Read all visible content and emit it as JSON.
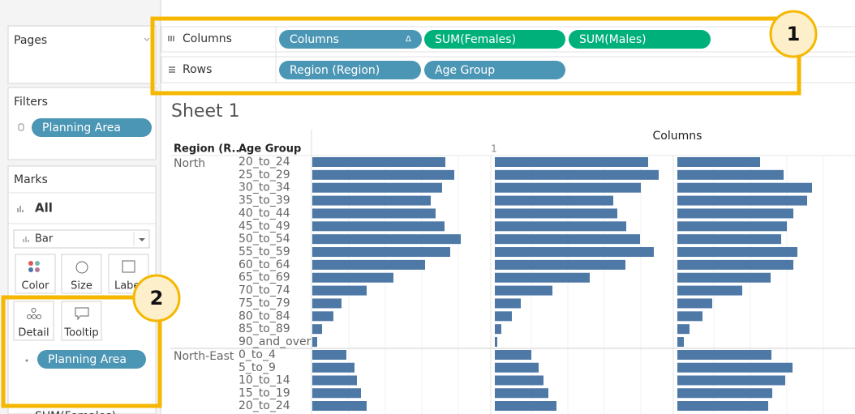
{
  "pages": {
    "title": "Pages"
  },
  "shelves": {
    "columns": {
      "label": "Columns",
      "pills": [
        "Columns",
        "SUM(Females)",
        "SUM(Males)"
      ],
      "sort_icon": "Δ"
    },
    "rows": {
      "label": "Rows",
      "pills": [
        "Region (Region)",
        "Age Group"
      ]
    }
  },
  "filters": {
    "title": "Filters",
    "pills": [
      "Planning Area"
    ]
  },
  "marks": {
    "title": "Marks",
    "all": "All",
    "mark_type": "Bar",
    "cards": [
      "Color",
      "Size",
      "Label",
      "Detail",
      "Tooltip"
    ],
    "detail_pill": "Planning Area",
    "next_item": "SUM(Females)"
  },
  "callouts": [
    "1",
    "2"
  ],
  "sheet": {
    "title": "Sheet 1",
    "column_header": "Columns",
    "column_value": "1",
    "row_headers": [
      "Region (R..",
      "Age Group"
    ],
    "regions": [
      {
        "name": "North",
        "age_groups": [
          "20_to_24",
          "25_to_29",
          "30_to_34",
          "35_to_39",
          "40_to_44",
          "45_to_49",
          "50_to_54",
          "55_to_59",
          "60_to_64",
          "65_to_69",
          "70_to_74",
          "75_to_79",
          "80_to_84",
          "85_to_89",
          "90_and_over"
        ],
        "values": [
          [
            164,
            175,
            160,
            146,
            152,
            163,
            183,
            170,
            139,
            100,
            67,
            36,
            26,
            12,
            6
          ],
          [
            189,
            202,
            180,
            146,
            151,
            162,
            179,
            196,
            161,
            117,
            71,
            32,
            21,
            8,
            3
          ],
          [
            102,
            131,
            166,
            160,
            143,
            135,
            128,
            148,
            143,
            115,
            80,
            43,
            31,
            15,
            8
          ]
        ]
      },
      {
        "name": "North-East",
        "age_groups": [
          "0_to_4",
          "5_to_9",
          "10_to_14",
          "15_to_19",
          "20_to_24"
        ],
        "values": [
          [
            42,
            52,
            55,
            60,
            67
          ],
          [
            45,
            54,
            60,
            66,
            76
          ],
          [
            116,
            142,
            133,
            117,
            112
          ]
        ]
      }
    ]
  }
}
